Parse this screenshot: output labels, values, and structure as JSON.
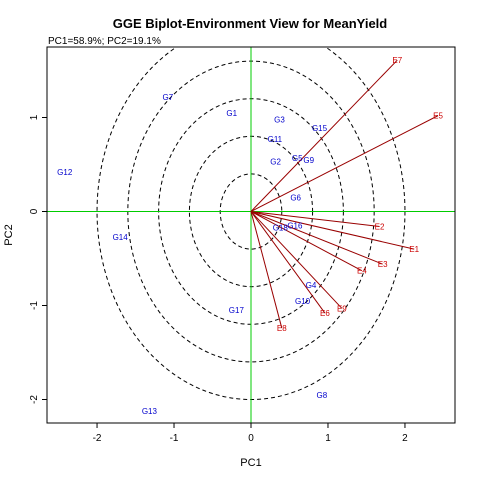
{
  "chart_data": {
    "type": "scatter",
    "title": "GGE Biplot-Environment View for MeanYield",
    "subtitle": "PC1=58.9%; PC2=19.1%",
    "xlabel": "PC1",
    "ylabel": "PC2",
    "xlim": [
      -2.65,
      2.65
    ],
    "ylim": [
      -2.25,
      1.75
    ],
    "xticks": [
      -2,
      -1,
      0,
      1,
      2
    ],
    "yticks": [
      -2,
      -1,
      0,
      1
    ],
    "xtick_labels": [
      "-2",
      "-1",
      "0",
      "1",
      "2"
    ],
    "ytick_labels": [
      "-2",
      "-1",
      "0",
      "1"
    ],
    "circle_radii": [
      0.4,
      0.8,
      1.2,
      1.6,
      2.0
    ],
    "colors": {
      "genotype": "#0000cc",
      "environment": "#cc0000",
      "vector": "#990000",
      "axis_line": "#00cc00",
      "circle": "#000000"
    },
    "genotypes": [
      {
        "label": "G1",
        "x": -0.25,
        "y": 1.05
      },
      {
        "label": "G2",
        "x": 0.32,
        "y": 0.53
      },
      {
        "label": "G3",
        "x": 0.37,
        "y": 0.98
      },
      {
        "label": "G4",
        "x": 0.78,
        "y": -0.78
      },
      {
        "label": "G5",
        "x": 0.6,
        "y": 0.57
      },
      {
        "label": "G6",
        "x": 0.58,
        "y": 0.15
      },
      {
        "label": "G7",
        "x": -1.08,
        "y": 1.22
      },
      {
        "label": "G8",
        "x": 0.92,
        "y": -1.95
      },
      {
        "label": "G9",
        "x": 0.75,
        "y": 0.55
      },
      {
        "label": "G10",
        "x": 0.67,
        "y": -0.95
      },
      {
        "label": "G11",
        "x": 0.31,
        "y": 0.77
      },
      {
        "label": "G12",
        "x": -2.42,
        "y": 0.42
      },
      {
        "label": "G13",
        "x": -1.32,
        "y": -2.12
      },
      {
        "label": "G14",
        "x": -1.7,
        "y": -0.27
      },
      {
        "label": "G15",
        "x": 0.89,
        "y": 0.89
      },
      {
        "label": "G16",
        "x": 0.57,
        "y": -0.15
      },
      {
        "label": "G17",
        "x": -0.19,
        "y": -1.05
      },
      {
        "label": "G18",
        "x": 0.38,
        "y": -0.17
      }
    ],
    "environments": [
      {
        "label": "E1",
        "x": 2.12,
        "y": -0.4
      },
      {
        "label": "E2",
        "x": 1.67,
        "y": -0.16
      },
      {
        "label": "E3",
        "x": 1.71,
        "y": -0.56
      },
      {
        "label": "E4",
        "x": 1.44,
        "y": -0.63
      },
      {
        "label": "E5",
        "x": 2.43,
        "y": 1.02
      },
      {
        "label": "E6",
        "x": 0.96,
        "y": -1.08
      },
      {
        "label": "E7",
        "x": 1.9,
        "y": 1.61
      },
      {
        "label": "E8",
        "x": 0.4,
        "y": -1.24
      },
      {
        "label": "E9",
        "x": 1.18,
        "y": -1.03
      }
    ]
  }
}
